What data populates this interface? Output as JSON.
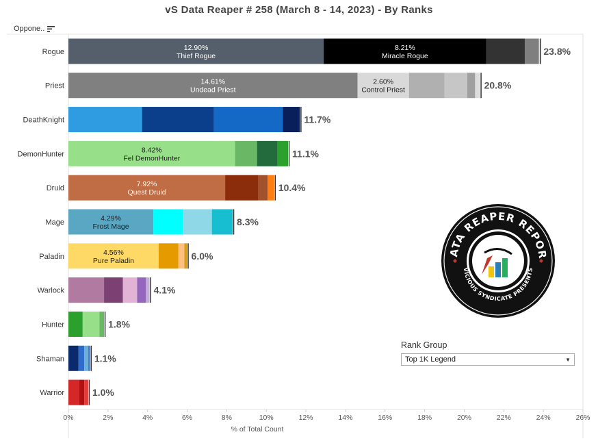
{
  "title": "vS Data Reaper #  258 (March 8 - 14, 2023) - By Ranks",
  "opponent_header": "Oppone..",
  "colors": {
    "axis": "#e0e0e0",
    "text": "#555555"
  },
  "chart_data": {
    "type": "bar",
    "orientation": "horizontal",
    "stacked": true,
    "xlabel": "% of Total Count",
    "xlim": [
      0,
      26
    ],
    "xticks": [
      "0%",
      "2%",
      "4%",
      "6%",
      "8%",
      "10%",
      "12%",
      "14%",
      "16%",
      "18%",
      "20%",
      "22%",
      "24%",
      "26%"
    ],
    "grid": false,
    "categories": [
      "Rogue",
      "Priest",
      "DeathKnight",
      "DemonHunter",
      "Druid",
      "Mage",
      "Paladin",
      "Warlock",
      "Hunter",
      "Shaman",
      "Warrior"
    ],
    "totals": [
      "23.8%",
      "20.8%",
      "11.7%",
      "11.1%",
      "10.4%",
      "8.3%",
      "6.0%",
      "4.1%",
      "1.8%",
      "1.1%",
      "1.0%"
    ],
    "bars": [
      {
        "class": "Rogue",
        "total": 23.8,
        "segments": [
          {
            "value": 12.9,
            "color": "#555f6b",
            "pct": "12.90%",
            "name": "Thief Rogue",
            "text_color": "#ffffff"
          },
          {
            "value": 8.21,
            "color": "#000000",
            "pct": "8.21%",
            "name": "Miracle Rogue",
            "text_color": "#ffffff"
          },
          {
            "value": 1.95,
            "color": "#333333"
          },
          {
            "value": 0.7,
            "color": "#7f7f7f"
          },
          {
            "value": 0.04,
            "color": "#a6a6a6"
          }
        ]
      },
      {
        "class": "Priest",
        "total": 20.8,
        "segments": [
          {
            "value": 14.61,
            "color": "#808080",
            "pct": "14.61%",
            "name": "Undead Priest",
            "text_color": "#ffffff"
          },
          {
            "value": 2.6,
            "color": "#d9d9d9",
            "pct": "2.60%",
            "name": "Control Priest",
            "text_color": "#222222"
          },
          {
            "value": 1.79,
            "color": "#b0b0b0"
          },
          {
            "value": 1.15,
            "color": "#c6c6c6"
          },
          {
            "value": 0.4,
            "color": "#a0a0a0"
          },
          {
            "value": 0.25,
            "color": "#dcdcdc"
          }
        ]
      },
      {
        "class": "DeathKnight",
        "total": 11.7,
        "segments": [
          {
            "value": 3.72,
            "color": "#2f9be0"
          },
          {
            "value": 3.63,
            "color": "#0b3f8c"
          },
          {
            "value": 3.48,
            "color": "#1469c7"
          },
          {
            "value": 0.87,
            "color": "#081f5c"
          }
        ]
      },
      {
        "class": "DemonHunter",
        "total": 11.1,
        "segments": [
          {
            "value": 8.42,
            "color": "#98df8a",
            "pct": "8.42%",
            "name": "Fel DemonHunter",
            "text_color": "#222222"
          },
          {
            "value": 1.11,
            "color": "#6ab865"
          },
          {
            "value": 1.04,
            "color": "#236b3c"
          },
          {
            "value": 0.53,
            "color": "#2ca02c"
          }
        ]
      },
      {
        "class": "Druid",
        "total": 10.4,
        "segments": [
          {
            "value": 7.92,
            "color": "#c06c44",
            "pct": "7.92%",
            "name": "Quest Druid",
            "text_color": "#ffffff"
          },
          {
            "value": 1.68,
            "color": "#8b2d0b"
          },
          {
            "value": 0.46,
            "color": "#a0522d"
          },
          {
            "value": 0.34,
            "color": "#ff7f0e"
          }
        ]
      },
      {
        "class": "Mage",
        "total": 8.3,
        "segments": [
          {
            "value": 4.29,
            "color": "#5aa7c3",
            "pct": "4.29%",
            "name": "Frost Mage",
            "text_color": "#222222"
          },
          {
            "value": 1.49,
            "color": "#00ffff"
          },
          {
            "value": 1.47,
            "color": "#8fd8e8"
          },
          {
            "value": 1.05,
            "color": "#17becf"
          }
        ]
      },
      {
        "class": "Paladin",
        "total": 6.0,
        "segments": [
          {
            "value": 4.56,
            "color": "#ffd966",
            "pct": "4.56%",
            "name": "Pure Paladin",
            "text_color": "#222222"
          },
          {
            "value": 1.0,
            "color": "#e39b00"
          },
          {
            "value": 0.3,
            "color": "#ffbf80"
          },
          {
            "value": 0.14,
            "color": "#d4a017"
          }
        ]
      },
      {
        "class": "Warlock",
        "total": 4.1,
        "segments": [
          {
            "value": 1.8,
            "color": "#b07aa1"
          },
          {
            "value": 0.95,
            "color": "#7b4173"
          },
          {
            "value": 0.72,
            "color": "#e3b3d6"
          },
          {
            "value": 0.45,
            "color": "#9467bd"
          },
          {
            "value": 0.18,
            "color": "#c5b0d5"
          }
        ]
      },
      {
        "class": "Hunter",
        "total": 1.8,
        "segments": [
          {
            "value": 0.72,
            "color": "#2ca02c"
          },
          {
            "value": 0.85,
            "color": "#98df8a"
          },
          {
            "value": 0.23,
            "color": "#6ab865"
          }
        ]
      },
      {
        "class": "Shaman",
        "total": 1.1,
        "segments": [
          {
            "value": 0.5,
            "color": "#0a2a6b"
          },
          {
            "value": 0.3,
            "color": "#2f6bc8"
          },
          {
            "value": 0.2,
            "color": "#6baed6"
          },
          {
            "value": 0.1,
            "color": "#4a7fd0"
          }
        ]
      },
      {
        "class": "Warrior",
        "total": 1.0,
        "segments": [
          {
            "value": 0.55,
            "color": "#d62728"
          },
          {
            "value": 0.25,
            "color": "#b01010"
          },
          {
            "value": 0.2,
            "color": "#e03c3c"
          }
        ]
      }
    ]
  },
  "rank_group": {
    "title": "Rank Group",
    "selected": "Top 1K Legend"
  },
  "logo": {
    "line1": "DATA REAPER REPORT",
    "line2": "VICIOUS SYNDICATE PRESENTS"
  }
}
